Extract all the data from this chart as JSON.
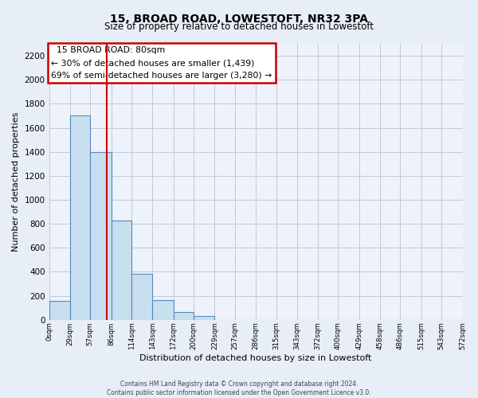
{
  "title": "15, BROAD ROAD, LOWESTOFT, NR32 3PA",
  "subtitle": "Size of property relative to detached houses in Lowestoft",
  "xlabel": "Distribution of detached houses by size in Lowestoft",
  "ylabel": "Number of detached properties",
  "bin_edges": [
    0,
    29,
    57,
    86,
    114,
    143,
    172,
    200,
    229,
    257,
    286,
    315,
    343,
    372,
    400,
    429,
    458,
    486,
    515,
    543,
    572
  ],
  "bar_heights": [
    155,
    1700,
    1400,
    830,
    385,
    165,
    65,
    30,
    0,
    0,
    0,
    0,
    0,
    0,
    0,
    0,
    0,
    0,
    0,
    0
  ],
  "bar_color": "#c8dff0",
  "bar_edge_color": "#5588bb",
  "vline_x": 80,
  "vline_color": "#cc0000",
  "annotation_title": "15 BROAD ROAD: 80sqm",
  "annotation_line1": "← 30% of detached houses are smaller (1,439)",
  "annotation_line2": "69% of semi-detached houses are larger (3,280) →",
  "ylim": [
    0,
    2300
  ],
  "yticks": [
    0,
    200,
    400,
    600,
    800,
    1000,
    1200,
    1400,
    1600,
    1800,
    2000,
    2200
  ],
  "xtick_labels": [
    "0sqm",
    "29sqm",
    "57sqm",
    "86sqm",
    "114sqm",
    "143sqm",
    "172sqm",
    "200sqm",
    "229sqm",
    "257sqm",
    "286sqm",
    "315sqm",
    "343sqm",
    "372sqm",
    "400sqm",
    "429sqm",
    "458sqm",
    "486sqm",
    "515sqm",
    "543sqm",
    "572sqm"
  ],
  "footer_line1": "Contains HM Land Registry data © Crown copyright and database right 2024.",
  "footer_line2": "Contains public sector information licensed under the Open Government Licence v3.0.",
  "bg_color": "#e8eef8",
  "plot_bg_color": "#eef2fa",
  "grid_color": "#c0c8d8"
}
